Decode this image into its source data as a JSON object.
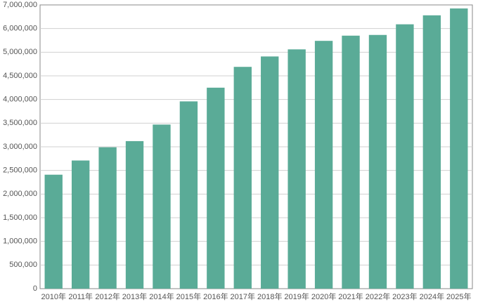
{
  "chart_data": {
    "type": "bar",
    "categories": [
      "2010年",
      "2011年",
      "2012年",
      "2013年",
      "2014年",
      "2015年",
      "2016年",
      "2017年",
      "2018年",
      "2019年",
      "2020年",
      "2021年",
      "2022年",
      "2023年",
      "2024年",
      "2025年"
    ],
    "values": [
      2410000,
      2710000,
      2990000,
      3120000,
      3470000,
      3960000,
      4250000,
      4690000,
      4910000,
      5120000,
      5480000,
      5700000,
      5730000,
      6180000,
      6560000,
      6850000
    ],
    "color": "#5aab97",
    "ylim": [
      0,
      7000000
    ],
    "yticks": [
      0,
      {
        "value": 500000,
        "label": "500,000"
      },
      {
        "value": 1000000,
        "label": "1,000,000"
      },
      {
        "value": 1500000,
        "label": "1,500,000"
      },
      {
        "value": 2000000,
        "label": "2,000,000"
      },
      {
        "value": 2500000,
        "label": "2,500,000"
      },
      {
        "value": 3000000,
        "label": "3,000,000"
      },
      {
        "value": 3500000,
        "label": "3,500,000"
      },
      {
        "value": 4000000,
        "label": "4,000,000"
      },
      {
        "value": 4500000,
        "label": "4,500,000"
      },
      {
        "value": 5000000,
        "label": "5,000,000"
      },
      {
        "value": 6000000,
        "label": "6,000,000"
      },
      {
        "value": 7000000,
        "label": "7,000,000"
      }
    ],
    "grid": true
  }
}
